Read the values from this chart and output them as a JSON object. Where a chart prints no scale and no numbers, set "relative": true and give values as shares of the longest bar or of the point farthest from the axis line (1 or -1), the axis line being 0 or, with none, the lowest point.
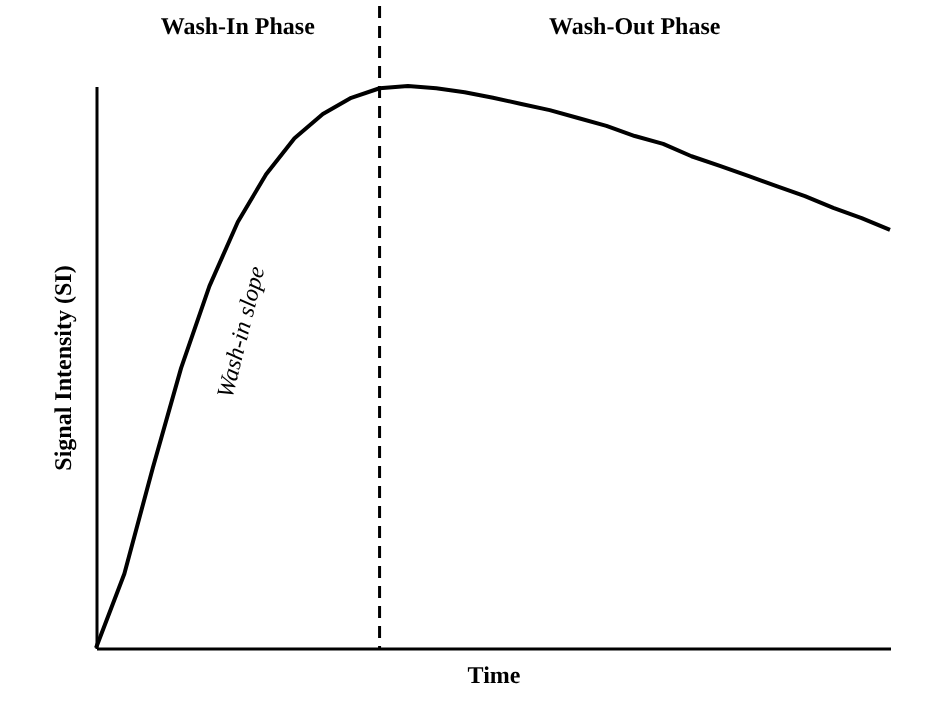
{
  "chart_data": {
    "type": "line",
    "relative": true,
    "xlabel": "Time",
    "ylabel": "Signal Intensity (SI)",
    "categories": [
      null,
      null,
      null,
      null,
      null,
      null,
      null,
      null,
      null,
      null,
      null,
      null,
      null,
      null,
      null,
      null,
      null,
      null,
      null,
      null,
      null,
      null,
      null,
      null,
      null,
      null,
      null,
      null,
      null
    ],
    "series": [
      {
        "color": "#000000",
        "values": [
          0,
          0.132,
          0.32,
          0.498,
          0.644,
          0.758,
          0.843,
          0.907,
          0.95,
          0.979,
          0.996,
          1.0,
          0.996,
          0.989,
          0.979,
          0.968,
          0.957,
          0.943,
          0.929,
          0.911,
          0.897,
          0.875,
          0.858,
          0.84,
          0.822,
          0.804,
          0.783,
          0.765,
          0.744
        ]
      }
    ],
    "annotations": [
      "Wash-In Phase",
      "Wash-Out Phase",
      "Wash-in slope"
    ],
    "grid": false,
    "marker": "none",
    "line_style": "solid"
  }
}
